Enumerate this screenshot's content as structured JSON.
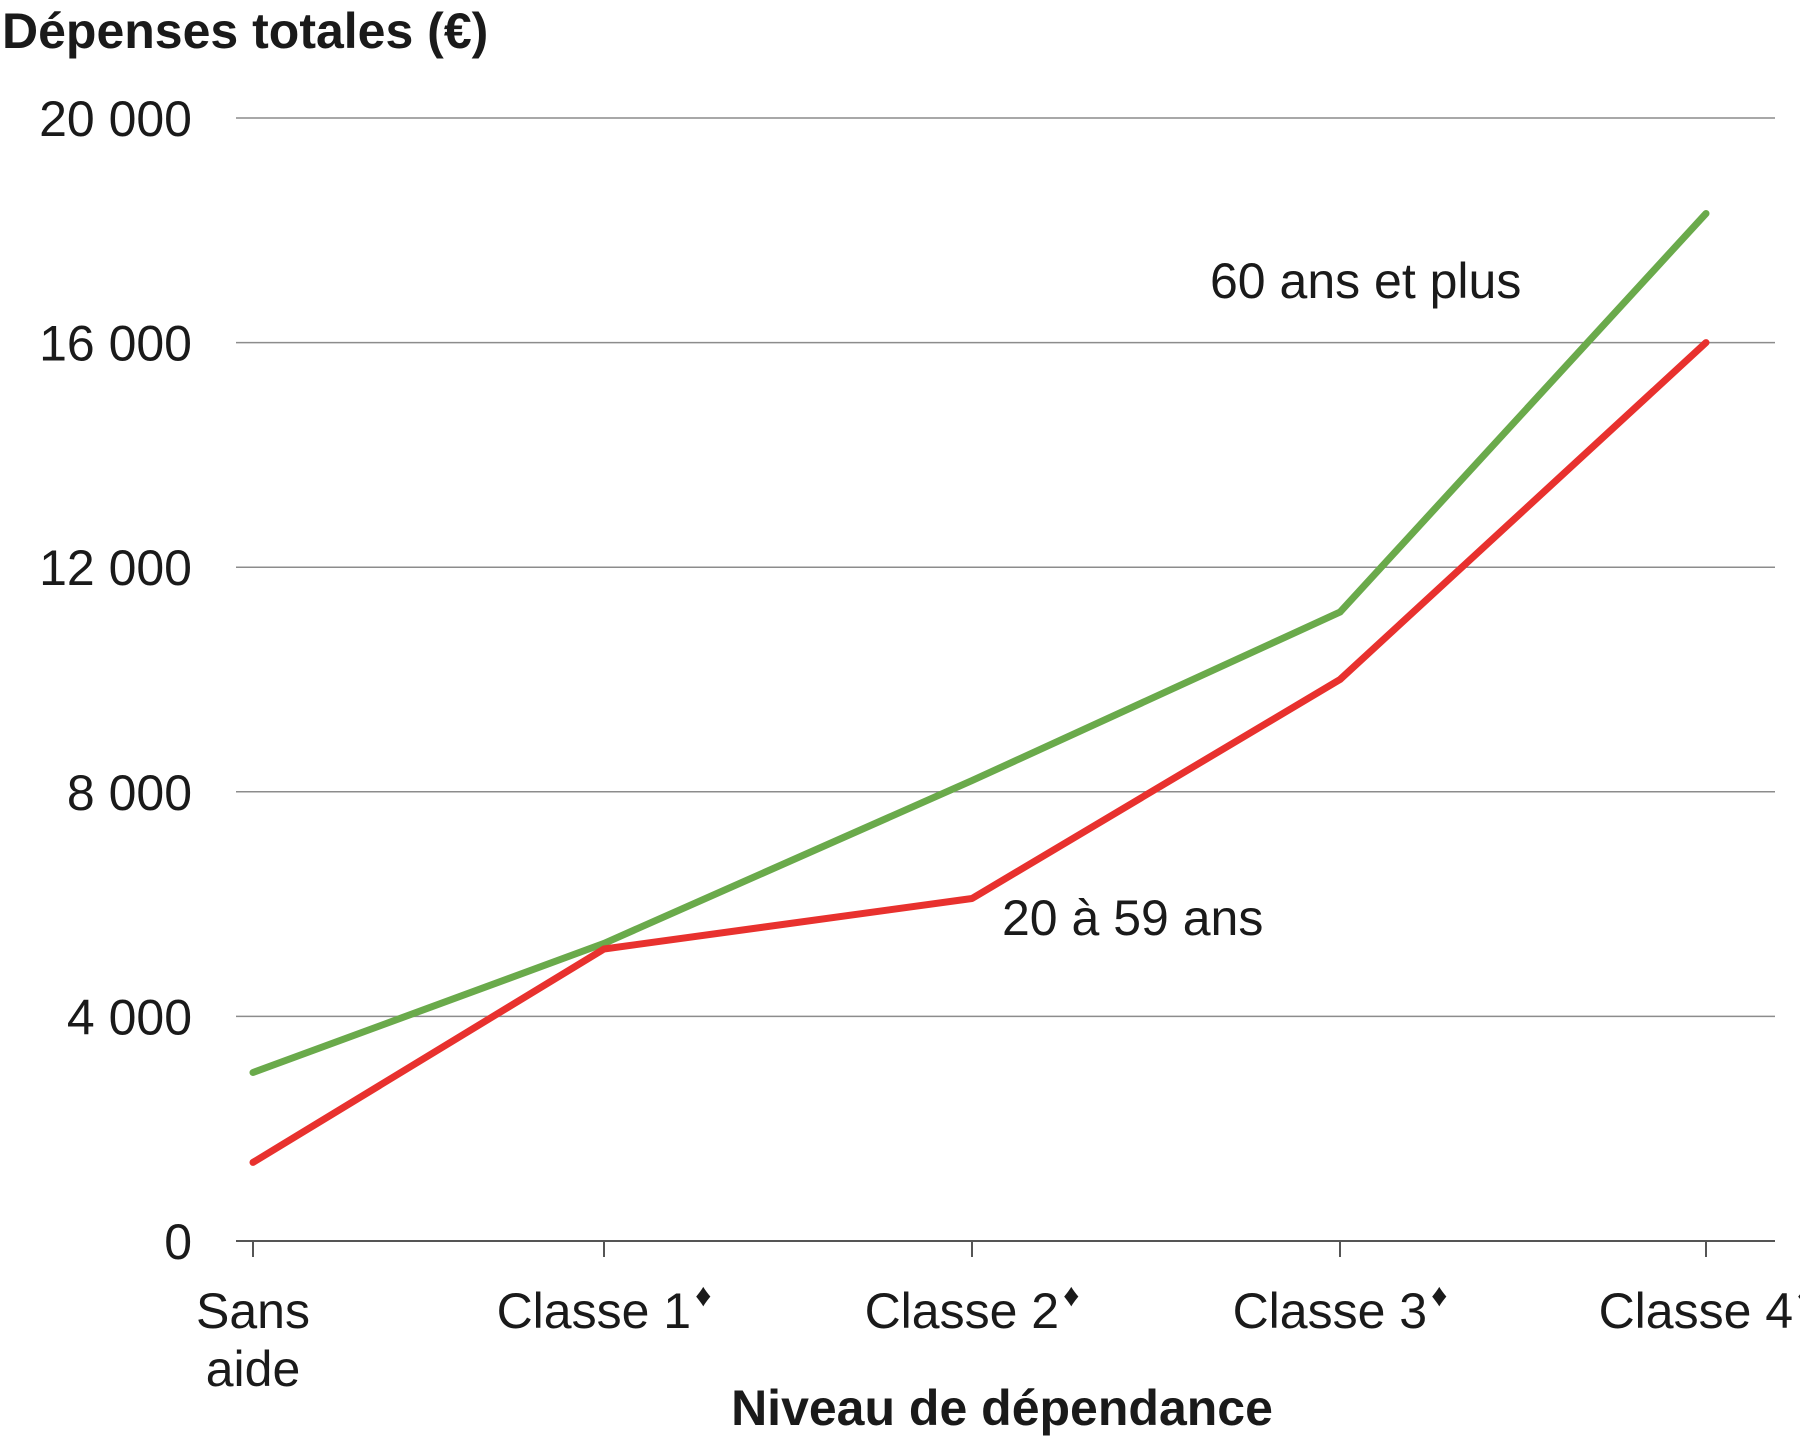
{
  "chart_data": {
    "type": "line",
    "title": "",
    "ylabel": "Dépenses totales (€)",
    "xlabel": "Niveau de dépendance",
    "ylim": [
      0,
      20000
    ],
    "yticks": [
      0,
      4000,
      8000,
      12000,
      16000,
      20000
    ],
    "ytick_labels": [
      "0",
      "4 000",
      "8 000",
      "12 000",
      "16 000",
      "20 000"
    ],
    "categories": [
      "Sans aide",
      "Classe 1",
      "Classe 2",
      "Classe 3",
      "Classe 4"
    ],
    "category_marker": "♦",
    "category_has_marker": [
      false,
      true,
      true,
      true,
      true
    ],
    "grid": true,
    "series": [
      {
        "name": "60 ans et plus",
        "color": "#6aaa4b",
        "values": [
          3000,
          5300,
          8200,
          11200,
          18300
        ]
      },
      {
        "name": "20 à 59 ans",
        "color": "#e8312e",
        "values": [
          1400,
          5200,
          6100,
          10000,
          16000
        ]
      }
    ]
  }
}
